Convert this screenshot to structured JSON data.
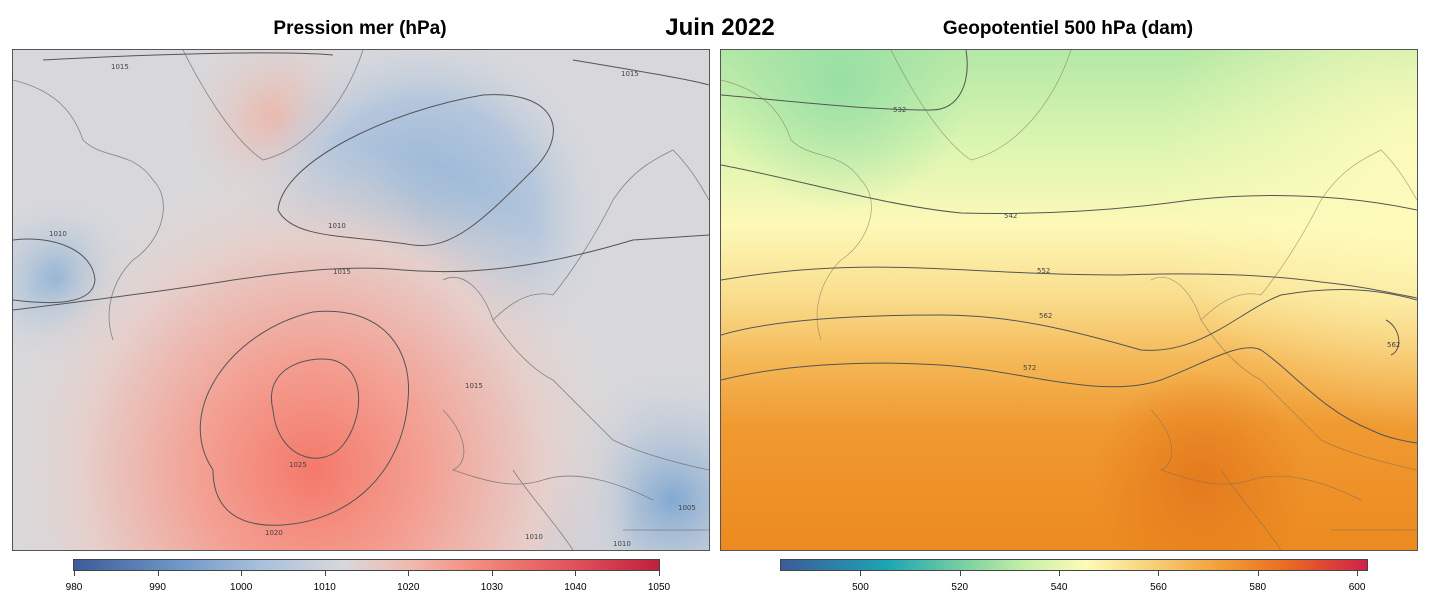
{
  "titles": {
    "main": "Juin 2022",
    "left": "Pression mer (hPa)",
    "right": "Geopotentiel 500 hPa (dam)"
  },
  "left_map": {
    "contour_labels": [
      "1015",
      "1010",
      "1010",
      "1015",
      "1015",
      "1025",
      "1020",
      "1015",
      "1010",
      "1010",
      "1005"
    ],
    "colorbar": {
      "min": 980,
      "max": 1050,
      "ticks": [
        "980",
        "990",
        "1000",
        "1010",
        "1020",
        "1030",
        "1040",
        "1050"
      ],
      "tick_values": [
        980,
        990,
        1000,
        1010,
        1020,
        1030,
        1040,
        1050
      ],
      "colors": [
        "#3d5b99",
        "#6f97c8",
        "#a9c0dc",
        "#d8d8dc",
        "#f1b8ac",
        "#f3877a",
        "#e0505a",
        "#c0203c"
      ]
    }
  },
  "right_map": {
    "contour_labels": [
      "532",
      "542",
      "552",
      "562",
      "572",
      "562"
    ],
    "colorbar": {
      "min": 484,
      "max": 602,
      "ticks": [
        "500",
        "520",
        "540",
        "560",
        "580",
        "600"
      ],
      "tick_values": [
        500,
        520,
        540,
        560,
        580,
        600
      ],
      "colors": [
        "#3d5b99",
        "#1ba5b5",
        "#7fd3a0",
        "#c9f0a8",
        "#fdfbb8",
        "#f7cd73",
        "#f29a35",
        "#ea6d22",
        "#d2204a"
      ]
    }
  }
}
